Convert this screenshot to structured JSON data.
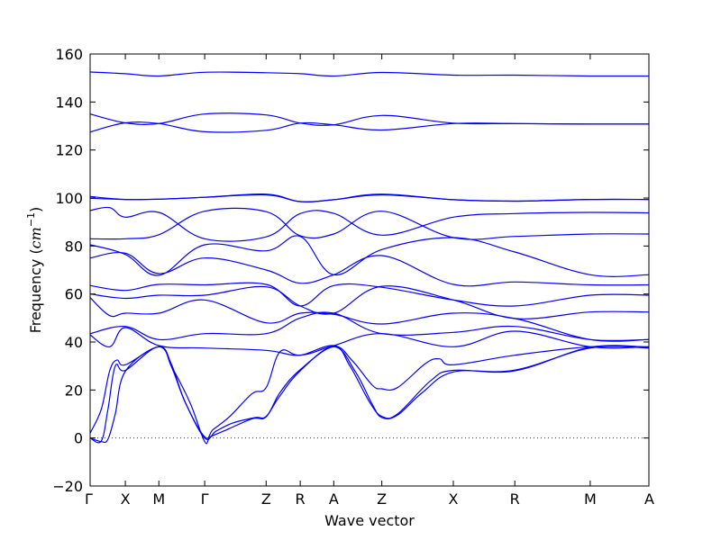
{
  "chart_data": {
    "type": "line",
    "xlabel": "Wave vector",
    "ylabel": "Frequency (",
    "ylabel_unit": "cm",
    "ylabel_exp": "−1",
    "ylabel_close": ")",
    "ylim": [
      -20,
      160
    ],
    "yticks": [
      -20,
      0,
      20,
      40,
      60,
      80,
      100,
      120,
      140,
      160
    ],
    "ytick_labels": [
      "−20",
      "0",
      "20",
      "40",
      "60",
      "80",
      "100",
      "120",
      "140",
      "160"
    ],
    "xlim": [
      0,
      100
    ],
    "high_symmetry_points": [
      {
        "label": "Γ",
        "x": 0
      },
      {
        "label": "X",
        "x": 6.3
      },
      {
        "label": "M",
        "x": 12.3
      },
      {
        "label": "Γ",
        "x": 20.5
      },
      {
        "label": "Z",
        "x": 31.5
      },
      {
        "label": "R",
        "x": 37.6
      },
      {
        "label": "A",
        "x": 43.6
      },
      {
        "label": "Z",
        "x": 52.2
      },
      {
        "label": "X",
        "x": 65
      },
      {
        "label": "R",
        "x": 76
      },
      {
        "label": "M",
        "x": 89.5
      },
      {
        "label": "A",
        "x": 100
      }
    ],
    "zero_line": true,
    "line_color": "#0000ff",
    "series": [
      {
        "x": [
          0,
          6.3,
          12.3,
          20.5,
          31.5,
          37.6,
          43.6,
          52.2,
          65,
          76,
          89.5,
          100
        ],
        "y": [
          152.5,
          151.8,
          150.8,
          152.4,
          152.2,
          151.8,
          150.8,
          152.3,
          151.2,
          151.2,
          150.8,
          150.8
        ]
      },
      {
        "x": [
          0,
          6.3,
          12.3,
          20.5,
          31.5,
          37.6,
          43.6,
          52.2,
          65,
          76,
          89.5,
          100
        ],
        "y": [
          135,
          131.3,
          131,
          135,
          134.6,
          131.2,
          130.5,
          134.4,
          131.2,
          131,
          130.8,
          130.8
        ]
      },
      {
        "x": [
          0,
          6.3,
          12.3,
          20.5,
          31.5,
          37.6,
          43.6,
          52.2,
          65,
          76,
          89.5,
          100
        ],
        "y": [
          127.5,
          131.3,
          131,
          127.6,
          128.2,
          131.2,
          130.5,
          128.3,
          131,
          131,
          130.8,
          130.8
        ]
      },
      {
        "x": [
          0,
          6.3,
          12.3,
          20.5,
          31.5,
          37.6,
          43.6,
          52.2,
          65,
          76,
          89.5,
          100
        ],
        "y": [
          100.6,
          99.4,
          99.5,
          100.3,
          101.6,
          98.5,
          99.3,
          101.6,
          99.3,
          98.7,
          99.4,
          99.4
        ]
      },
      {
        "x": [
          0,
          6.3,
          12.3,
          20.5,
          31.5,
          37.6,
          43.6,
          52.2,
          65,
          76,
          89.5,
          100
        ],
        "y": [
          99.9,
          99.4,
          99.5,
          100.3,
          101.3,
          98.5,
          99.3,
          101.3,
          99.3,
          98.7,
          99.4,
          99.4
        ]
      },
      {
        "x": [
          0,
          3.5,
          6.3,
          12.3,
          20.5,
          31.5,
          37.6,
          43.6,
          52.2,
          65,
          76,
          89.5,
          100
        ],
        "y": [
          94.8,
          96,
          92,
          94,
          83,
          83.8,
          93.5,
          93.6,
          84.5,
          92,
          93.5,
          94,
          93.8
        ]
      },
      {
        "x": [
          0,
          6.3,
          12.3,
          20.5,
          31.5,
          37.6,
          43.6,
          52.2,
          65,
          76,
          89.5,
          100
        ],
        "y": [
          83,
          83,
          84.7,
          94.5,
          94.3,
          84.3,
          85,
          94.5,
          83.5,
          84,
          85,
          85
        ]
      },
      {
        "x": [
          0,
          6.3,
          12.3,
          20.5,
          31.5,
          37.6,
          43.6,
          52.2,
          65,
          76,
          89.5,
          100
        ],
        "y": [
          80.5,
          76.5,
          67.8,
          80.5,
          78,
          84,
          68,
          78.5,
          83.5,
          77.5,
          68,
          68
        ]
      },
      {
        "x": [
          0,
          6.3,
          12.3,
          20.5,
          31.5,
          37.6,
          43.6,
          52.2,
          65,
          76,
          89.5,
          100
        ],
        "y": [
          75,
          77,
          68.5,
          75,
          70,
          64.5,
          68,
          76,
          64,
          65,
          63.8,
          63.8
        ]
      },
      {
        "x": [
          0,
          6.3,
          12.3,
          20.5,
          31.5,
          37.6,
          43.6,
          52.2,
          65,
          76,
          89.5,
          100
        ],
        "y": [
          63.5,
          61.5,
          64,
          63.8,
          64,
          55,
          63.5,
          62.8,
          57.5,
          55,
          59.5,
          59.5
        ]
      },
      {
        "x": [
          0,
          6.3,
          12.3,
          20.5,
          31.5,
          37.6,
          43.6,
          52.2,
          65,
          76,
          89.5,
          100
        ],
        "y": [
          60,
          58.2,
          59.5,
          59.5,
          63,
          55,
          52,
          63.2,
          57.5,
          49.8,
          52.5,
          52.5
        ]
      },
      {
        "x": [
          0,
          3.5,
          6.3,
          12.3,
          20.5,
          31.5,
          37.6,
          43.6,
          52.2,
          65,
          76,
          89.5,
          100
        ],
        "y": [
          58.5,
          51,
          52,
          52,
          57.5,
          48,
          52,
          51.5,
          47.5,
          52,
          49.8,
          41,
          41
        ]
      },
      {
        "x": [
          0,
          6.3,
          12.3,
          20.5,
          31.5,
          37.6,
          43.6,
          52.2,
          65,
          76,
          89.5,
          100
        ],
        "y": [
          43.5,
          46.5,
          41,
          43.5,
          43.5,
          50,
          52,
          43.5,
          44,
          46.5,
          41,
          41
        ]
      },
      {
        "x": [
          0,
          3.5,
          6.3,
          12.3,
          20.5,
          31.5,
          37.6,
          43.6,
          52.2,
          65,
          76,
          89.5,
          100
        ],
        "y": [
          43,
          38,
          46,
          38.5,
          37.5,
          36.5,
          34.5,
          38.5,
          43.5,
          38,
          44.5,
          38,
          38
        ]
      },
      {
        "x": [
          0,
          2,
          3.2,
          4.5,
          6.3,
          12.3,
          14.5,
          17,
          20.5,
          22.5,
          25.5,
          29.5,
          31.5,
          33.8,
          37.6,
          43.6,
          47.5,
          50.5,
          52.2,
          55,
          59.5,
          65,
          76,
          89.5,
          100
        ],
        "y": [
          0,
          -1.5,
          -0.5,
          10,
          27.8,
          38,
          30,
          15,
          0,
          2.8,
          6.2,
          8.5,
          9,
          17,
          28,
          38,
          27.5,
          14,
          8.5,
          9.5,
          19,
          27.5,
          28.3,
          37.5,
          37.5
        ]
      },
      {
        "x": [
          0,
          2,
          3.2,
          4.5,
          6.3,
          12.3,
          15,
          18,
          20.5,
          21.5,
          24,
          29,
          31.5,
          34,
          37.6,
          43.6,
          46.5,
          50,
          52.2,
          55,
          61,
          65,
          76,
          89.5,
          100
        ],
        "y": [
          0,
          -1.2,
          12,
          30,
          28.2,
          38,
          28,
          14,
          -1.5,
          0.5,
          3,
          8,
          8.8,
          19,
          28.5,
          38,
          30,
          15,
          9,
          10,
          24,
          28.2,
          28,
          37.8,
          37.8
        ]
      },
      {
        "x": [
          0,
          2,
          3.5,
          4.8,
          6.3,
          12.3,
          14.5,
          17,
          20.5,
          22,
          25,
          29,
          31.5,
          34,
          37.6,
          43.6,
          47,
          50.5,
          52.2,
          55,
          60,
          62.5,
          65,
          76,
          89.5,
          100
        ],
        "y": [
          2,
          12,
          28,
          32.5,
          30.5,
          38,
          31,
          15,
          0.5,
          3.5,
          9,
          18.5,
          21,
          36,
          34.5,
          38.5,
          32,
          22,
          20.5,
          21,
          31,
          33,
          30.5,
          34.5,
          38,
          38
        ]
      }
    ]
  }
}
